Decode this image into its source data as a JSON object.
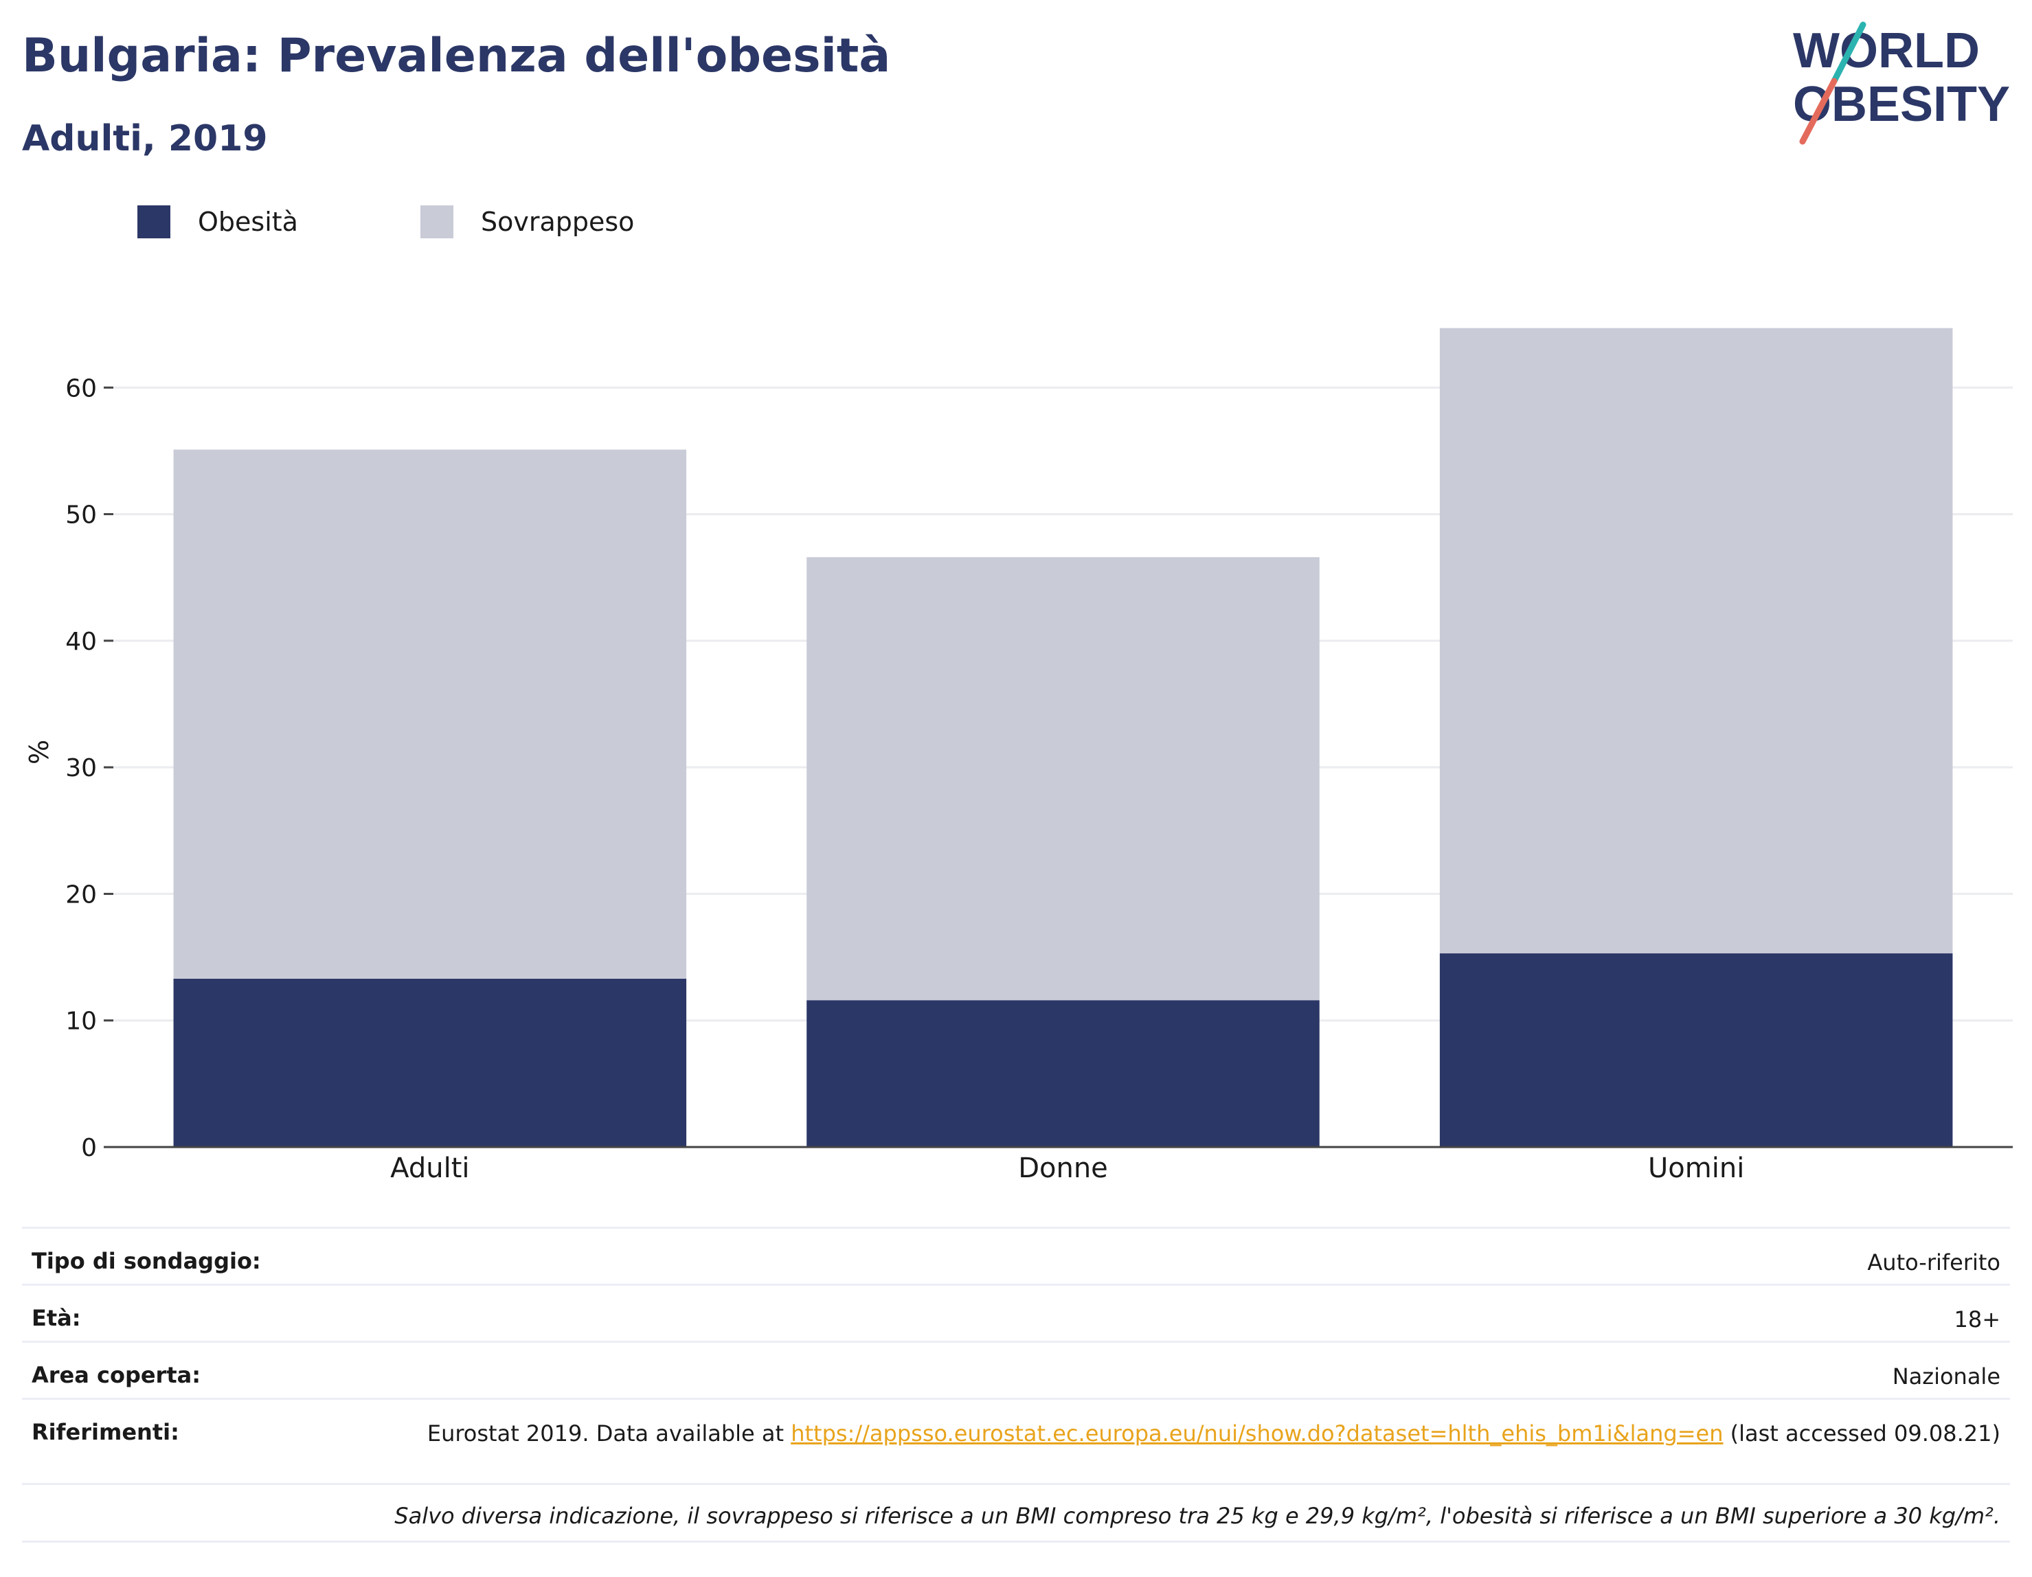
{
  "header": {
    "title": "Bulgaria: Prevalenza dell'obesità",
    "subtitle": "Adulti, 2019"
  },
  "logo": {
    "line1": "WORLD",
    "line2": "OBESITY"
  },
  "colors": {
    "obesity": "#2b3766",
    "overweight": "#c9cbd7",
    "axis": "#444444",
    "grid": "#ebecef",
    "link": "#e8a31c"
  },
  "chart_data": {
    "type": "bar",
    "stacked": true,
    "categories": [
      "Adulti",
      "Donne",
      "Uomini"
    ],
    "series": [
      {
        "name": "Obesità",
        "values": [
          13.3,
          11.6,
          15.3
        ]
      },
      {
        "name": "Sovrappeso",
        "values": [
          41.8,
          35.0,
          49.4
        ]
      }
    ],
    "ylabel": "%",
    "ylim": [
      0,
      70
    ],
    "yticks": [
      0,
      10,
      20,
      30,
      40,
      50,
      60
    ],
    "grid": true,
    "legend": "top-left"
  },
  "info": {
    "rows": [
      {
        "key": "Tipo di sondaggio:",
        "value": "Auto-riferito"
      },
      {
        "key": "Età:",
        "value": "18+"
      },
      {
        "key": "Area coperta:",
        "value": "Nazionale"
      }
    ],
    "references": {
      "key": "Riferimenti:",
      "prefix": "Eurostat 2019. Data available at ",
      "link": "https://appsso.eurostat.ec.europa.eu/nui/show.do?dataset=hlth_ehis_bm1i&lang=en",
      "suffix": " (last accessed 09.08.21)"
    },
    "note": "Salvo diversa indicazione, il sovrappeso si riferisce a un BMI compreso tra 25 kg e 29,9 kg/m², l'obesità si riferisce a un BMI superiore a 30 kg/m²."
  }
}
